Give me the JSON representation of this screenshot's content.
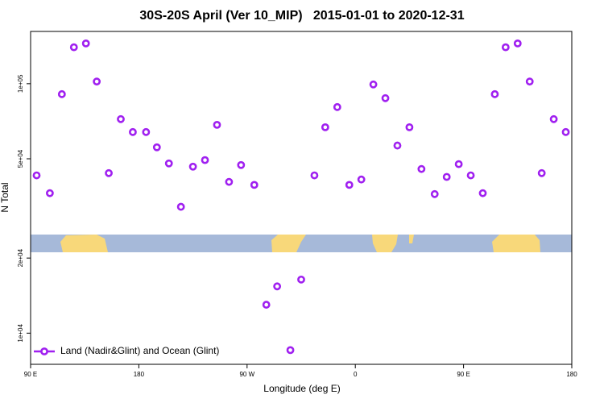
{
  "chart_data": {
    "type": "scatter",
    "title": "30S-20S April (Ver 10_MIP)   2015-01-01 to 2020-12-31",
    "x_label": "Longitude (deg E)",
    "y_label": "N Total",
    "ylog": true,
    "legend": "bottom-left",
    "xlim": [
      90,
      540
    ],
    "ylim": [
      7500,
      162000
    ],
    "xticks": [
      {
        "value": 90,
        "label": "90 E"
      },
      180,
      {
        "value": 270,
        "label": "90 W"
      },
      {
        "value": 360,
        "label": "0"
      },
      {
        "value": 450,
        "label": "90 E"
      },
      {
        "value": 540,
        "label": "180"
      }
    ],
    "yticks": [
      {
        "value": 10000,
        "label": "1e+04"
      },
      {
        "value": 20000,
        "label": "2e+04"
      },
      {
        "value": 50000,
        "label": "5e+04"
      },
      {
        "value": 100000,
        "label": "1e+05"
      }
    ],
    "series": [
      {
        "name": "Land (Nadir&Glint) and Ocean (Glint)",
        "color": "#a020f0",
        "x": [
          95,
          106,
          116,
          126,
          136,
          145,
          155,
          165,
          175,
          186,
          195,
          205,
          215,
          225,
          235,
          245,
          255,
          265,
          276,
          286,
          295,
          306,
          315,
          326,
          335,
          345,
          355,
          365,
          375,
          385,
          395,
          405,
          415,
          426,
          436,
          446,
          456,
          466,
          476,
          485,
          495,
          505,
          515,
          525,
          535
        ],
        "values": [
          42900,
          36400,
          90800,
          140000,
          145000,
          102000,
          43800,
          72100,
          64000,
          64000,
          55600,
          47900,
          32100,
          46500,
          49400,
          68400,
          40400,
          47200,
          39300,
          13000,
          15400,
          8550,
          16400,
          42900,
          66900,
          80600,
          39300,
          41300,
          99300,
          87500,
          56500,
          66900,
          45500,
          36100,
          42300,
          47600,
          42900,
          36400,
          90800,
          140000,
          145000,
          102000,
          43800,
          72100,
          64000
        ]
      }
    ]
  }
}
